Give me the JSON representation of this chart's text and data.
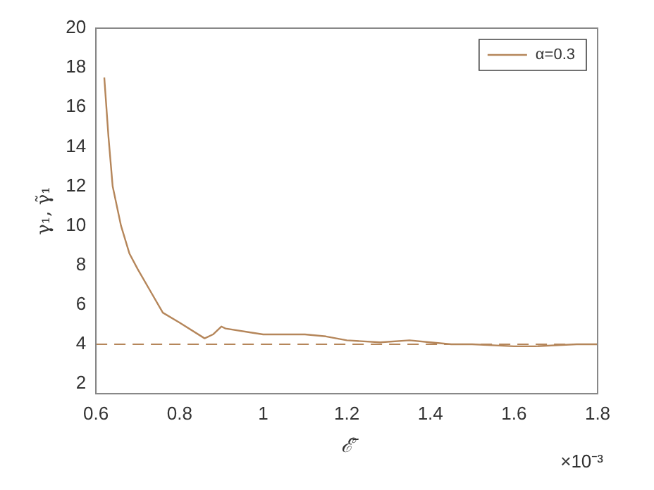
{
  "chart_data": {
    "type": "line",
    "xlabel": "ℰ̄",
    "ylabel": "γ₁, γ̃₁",
    "annotations": [
      "×10⁻³"
    ],
    "series": [
      {
        "name": "α=0.3",
        "color": "#b5865a",
        "x": [
          0.62,
          0.63,
          0.64,
          0.66,
          0.68,
          0.7,
          0.73,
          0.76,
          0.8,
          0.86,
          0.88,
          0.9,
          0.91,
          0.97,
          1.0,
          1.1,
          1.15,
          1.2,
          1.28,
          1.35,
          1.4,
          1.45,
          1.5,
          1.6,
          1.65,
          1.75,
          1.8
        ],
        "values": [
          17.5,
          14.5,
          12,
          10,
          8.6,
          7.8,
          6.7,
          5.6,
          5.1,
          4.3,
          4.5,
          4.9,
          4.8,
          4.6,
          4.5,
          4.5,
          4.4,
          4.2,
          4.1,
          4.2,
          4.1,
          4.0,
          4.0,
          3.9,
          3.9,
          4.0,
          4.0
        ]
      }
    ],
    "ref_lines": [
      {
        "axis": "y",
        "value": 4,
        "color": "#b5865a",
        "line_style": "dashed"
      }
    ],
    "xlim": [
      0.6,
      1.8
    ],
    "xticks": [
      0.6,
      0.8,
      1,
      1.2,
      1.4,
      1.6,
      1.8
    ],
    "ylim": [
      1.5,
      20
    ],
    "yticks": [
      2,
      4,
      6,
      8,
      10,
      12,
      14,
      16,
      18,
      20
    ],
    "grid": false,
    "legend": "top right",
    "marker": "none",
    "line_style": "solid"
  }
}
